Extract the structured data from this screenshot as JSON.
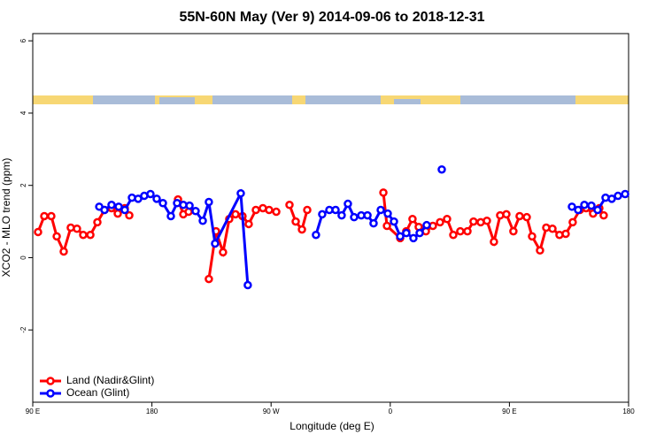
{
  "chart_data": {
    "type": "line",
    "title": "55N-60N May (Ver 9)   2014-09-06 to 2018-12-31",
    "x_label": "Longitude (deg E)",
    "y_label": "XCO2 - MLO trend (ppm)",
    "xlim": [
      90,
      540
    ],
    "ylim": [
      -4,
      6.2
    ],
    "xticks": [
      {
        "value": 90,
        "label": "90 E"
      },
      {
        "value": 180,
        "label": "180"
      },
      {
        "value": 270,
        "label": "90 W"
      },
      {
        "value": 360,
        "label": "0"
      },
      {
        "value": 450,
        "label": "90 E"
      },
      {
        "value": 540,
        "label": "180"
      }
    ],
    "yticks": [
      -2,
      0,
      2,
      4,
      6
    ],
    "legend": "bottom-left",
    "series": [
      {
        "name": "Land (Nadir&Glint)",
        "color": "#ff0000",
        "x": [
          94.0,
          98.7,
          104.0,
          108.1,
          113.4,
          118.7,
          123.4,
          128.1,
          133.5,
          138.8,
          144.2,
          149.5,
          154.2,
          159.5,
          162.9,
          null,
          199.7,
          203.7,
          207.7,
          null,
          223.0,
          228.4,
          233.7,
          238.4,
          243.1,
          248.4,
          253.1,
          258.5,
          263.8,
          268.5,
          273.9,
          null,
          283.9,
          288.6,
          293.3,
          297.3,
          null,
          354.8,
          357.5,
          367.5,
          372.1,
          376.8,
          381.5,
          386.9,
          392.2,
          397.6,
          402.9,
          407.6,
          412.9,
          418.3,
          422.9,
          428.3,
          433.0,
          438.3,
          443.0,
          447.7,
          453.0,
          457.7,
          463.1,
          467.1,
          473.1,
          477.8,
          482.5,
          487.8,
          492.5,
          497.8,
          503.2,
          507.9,
          513.2,
          517.9,
          521.2
        ],
        "values": [
          0.71,
          1.15,
          1.15,
          0.59,
          0.17,
          0.83,
          0.8,
          0.63,
          0.63,
          0.98,
          1.32,
          1.37,
          1.22,
          1.37,
          1.17,
          null,
          1.61,
          1.2,
          1.27,
          null,
          -0.59,
          0.73,
          0.15,
          1.07,
          1.2,
          1.15,
          0.93,
          1.32,
          1.37,
          1.32,
          1.27,
          null,
          1.46,
          1.0,
          0.78,
          1.32,
          null,
          1.8,
          0.88,
          0.54,
          0.73,
          1.07,
          0.85,
          0.73,
          0.88,
          0.98,
          1.07,
          0.63,
          0.73,
          0.73,
          1.0,
          0.98,
          1.02,
          0.44,
          1.17,
          1.2,
          0.73,
          1.15,
          1.12,
          0.59,
          0.2,
          0.83,
          0.8,
          0.63,
          0.66,
          0.98,
          1.32,
          1.37,
          1.22,
          1.37,
          1.17
        ]
      },
      {
        "name": "Ocean (Glint)",
        "color": "#0000ff",
        "x": [
          140.2,
          144.2,
          149.5,
          154.9,
          159.5,
          164.9,
          169.6,
          174.2,
          178.9,
          183.6,
          188.3,
          194.3,
          199.0,
          203.7,
          208.4,
          213.0,
          218.4,
          223.0,
          227.7,
          247.1,
          252.4,
          null,
          303.9,
          308.6,
          314.0,
          318.7,
          323.3,
          328.0,
          332.7,
          338.1,
          342.8,
          347.4,
          352.8,
          358.1,
          362.8,
          367.5,
          372.1,
          377.5,
          382.2,
          387.5,
          null,
          398.9,
          null,
          497.2,
          501.9,
          506.6,
          511.9,
          516.6,
          522.6,
          527.3,
          532.0,
          537.4
        ],
        "values": [
          1.41,
          1.32,
          1.46,
          1.41,
          1.32,
          1.66,
          1.63,
          1.71,
          1.76,
          1.63,
          1.51,
          1.15,
          1.51,
          1.46,
          1.44,
          1.29,
          1.02,
          1.54,
          0.39,
          1.78,
          -0.76,
          null,
          0.63,
          1.2,
          1.32,
          1.32,
          1.17,
          1.49,
          1.12,
          1.17,
          1.17,
          0.95,
          1.32,
          1.22,
          1.0,
          0.59,
          0.68,
          0.54,
          0.68,
          0.9,
          null,
          2.44,
          null,
          1.41,
          1.32,
          1.46,
          1.44,
          1.32,
          1.66,
          1.63,
          1.71,
          1.76
        ]
      }
    ]
  }
}
